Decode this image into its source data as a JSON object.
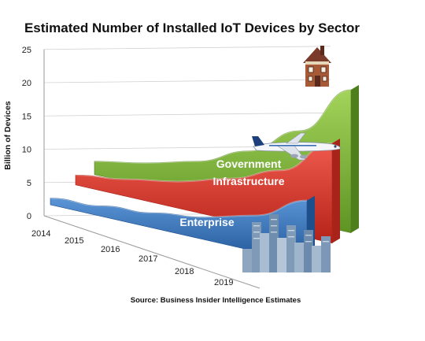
{
  "chart_data": {
    "type": "area",
    "title": "Estimated Number of Installed IoT Devices by Sector",
    "ylabel": "Billion of Devices",
    "xlabel": "",
    "source": "Source: Business Insider Intelligence Estimates",
    "x": [
      "2014",
      "2015",
      "2016",
      "2017",
      "2018",
      "2019"
    ],
    "yticks": [
      "0",
      "5",
      "10",
      "15",
      "20",
      "25"
    ],
    "ylim": [
      0,
      25
    ],
    "grid": true,
    "legend": "none",
    "series": [
      {
        "name": "Enterprise",
        "values": [
          1.0,
          1.6,
          2.3,
          3.4,
          5.4,
          9.4
        ],
        "color": "#2e6db0"
      },
      {
        "name": "Government Infrastructure",
        "values": [
          1.5,
          2.6,
          4.0,
          6.2,
          9.2,
          15.0
        ],
        "color": "#d9372c"
      },
      {
        "name": "Home",
        "values": [
          2.0,
          3.5,
          5.5,
          8.8,
          13.6,
          21.5
        ],
        "color": "#7fb338"
      }
    ],
    "series_labels": {
      "enterprise": "Enterprise",
      "government_line1": "Government",
      "government_line2": "Infrastructure",
      "home": "Home"
    },
    "illustrations": [
      "house-icon",
      "airplane-icon",
      "city-skyline-icon"
    ]
  }
}
